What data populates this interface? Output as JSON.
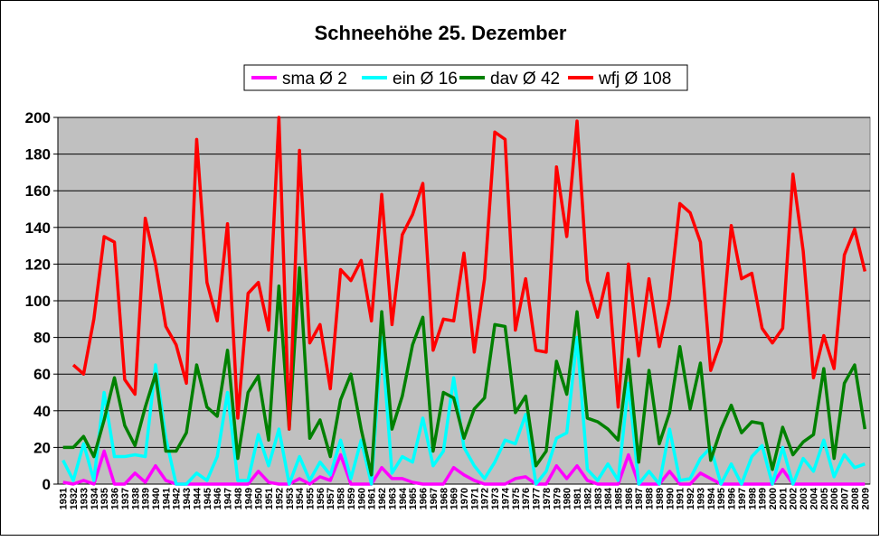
{
  "chart_data": {
    "type": "line",
    "title": "Schneehöhe 25. Dezember",
    "categories": [
      "1931",
      "1932",
      "1933",
      "1934",
      "1935",
      "1936",
      "1937",
      "1938",
      "1939",
      "1940",
      "1941",
      "1942",
      "1943",
      "1944",
      "1945",
      "1946",
      "1947",
      "1948",
      "1949",
      "1950",
      "1951",
      "1952",
      "1953",
      "1954",
      "1955",
      "1956",
      "1957",
      "1958",
      "1959",
      "1960",
      "1961",
      "1962",
      "1963",
      "1964",
      "1965",
      "1966",
      "1967",
      "1968",
      "1969",
      "1970",
      "1971",
      "1972",
      "1973",
      "1974",
      "1975",
      "1976",
      "1977",
      "1978",
      "1979",
      "1980",
      "1981",
      "1982",
      "1983",
      "1984",
      "1985",
      "1986",
      "1987",
      "1988",
      "1989",
      "1990",
      "1991",
      "1992",
      "1993",
      "1994",
      "1995",
      "1996",
      "1997",
      "1998",
      "1999",
      "2000",
      "2001",
      "2002",
      "2003",
      "2004",
      "2005",
      "2006",
      "2007",
      "2008",
      "2009"
    ],
    "series": [
      {
        "name": "sma Ø 2",
        "color": "#ff00ff",
        "values": [
          1,
          0,
          2,
          0,
          18,
          0,
          0,
          6,
          1,
          10,
          2,
          0,
          0,
          0,
          0,
          0,
          0,
          0,
          0,
          7,
          1,
          0,
          0,
          3,
          0,
          4,
          2,
          16,
          0,
          0,
          0,
          9,
          3,
          3,
          1,
          0,
          0,
          0,
          9,
          5,
          2,
          0,
          0,
          0,
          3,
          4,
          0,
          0,
          10,
          3,
          10,
          2,
          0,
          0,
          0,
          16,
          0,
          0,
          0,
          7,
          0,
          0,
          6,
          3,
          0,
          0,
          0,
          0,
          0,
          0,
          8,
          0,
          0,
          0,
          0,
          0,
          0,
          0,
          0
        ]
      },
      {
        "name": "ein Ø 16",
        "color": "#00ffff",
        "values": [
          13,
          2,
          22,
          2,
          50,
          15,
          15,
          16,
          15,
          65,
          25,
          0,
          0,
          6,
          2,
          15,
          50,
          2,
          2,
          27,
          10,
          30,
          0,
          15,
          2,
          12,
          5,
          24,
          3,
          24,
          0,
          80,
          6,
          15,
          12,
          36,
          10,
          18,
          58,
          20,
          10,
          3,
          12,
          24,
          22,
          38,
          0,
          7,
          25,
          28,
          80,
          8,
          2,
          11,
          2,
          55,
          0,
          7,
          0,
          30,
          2,
          3,
          14,
          20,
          0,
          11,
          0,
          15,
          21,
          0,
          20,
          0,
          14,
          7,
          24,
          4,
          16,
          9,
          11
        ]
      },
      {
        "name": "dav Ø 42",
        "color": "#008000",
        "values": [
          20,
          20,
          26,
          15,
          35,
          58,
          32,
          21,
          42,
          60,
          18,
          18,
          28,
          65,
          42,
          37,
          73,
          14,
          50,
          59,
          24,
          108,
          30,
          118,
          25,
          35,
          15,
          46,
          60,
          30,
          5,
          94,
          30,
          48,
          76,
          91,
          18,
          50,
          47,
          25,
          41,
          47,
          87,
          86,
          39,
          48,
          10,
          18,
          67,
          49,
          94,
          36,
          34,
          30,
          24,
          68,
          12,
          62,
          22,
          39,
          75,
          41,
          66,
          13,
          30,
          43,
          28,
          34,
          33,
          8,
          31,
          16,
          23,
          27,
          63,
          14,
          55,
          65,
          30
        ]
      },
      {
        "name": "wfj Ø 108",
        "color": "#ff0000",
        "values": [
          null,
          65,
          60,
          90,
          135,
          132,
          57,
          49,
          145,
          120,
          86,
          76,
          55,
          188,
          110,
          89,
          142,
          36,
          104,
          110,
          84,
          200,
          30,
          182,
          77,
          87,
          52,
          117,
          111,
          122,
          89,
          158,
          87,
          136,
          147,
          164,
          73,
          90,
          89,
          126,
          72,
          112,
          192,
          188,
          84,
          112,
          73,
          72,
          173,
          135,
          198,
          111,
          91,
          115,
          42,
          120,
          70,
          112,
          75,
          101,
          153,
          148,
          132,
          62,
          78,
          141,
          112,
          115,
          85,
          77,
          85,
          169,
          127,
          58,
          81,
          63,
          125,
          139,
          116
        ]
      }
    ],
    "ylim": [
      0,
      200
    ],
    "yticks": [
      0,
      20,
      40,
      60,
      80,
      100,
      120,
      140,
      160,
      180,
      200
    ],
    "grid": true,
    "background": "#c0c0c0"
  }
}
